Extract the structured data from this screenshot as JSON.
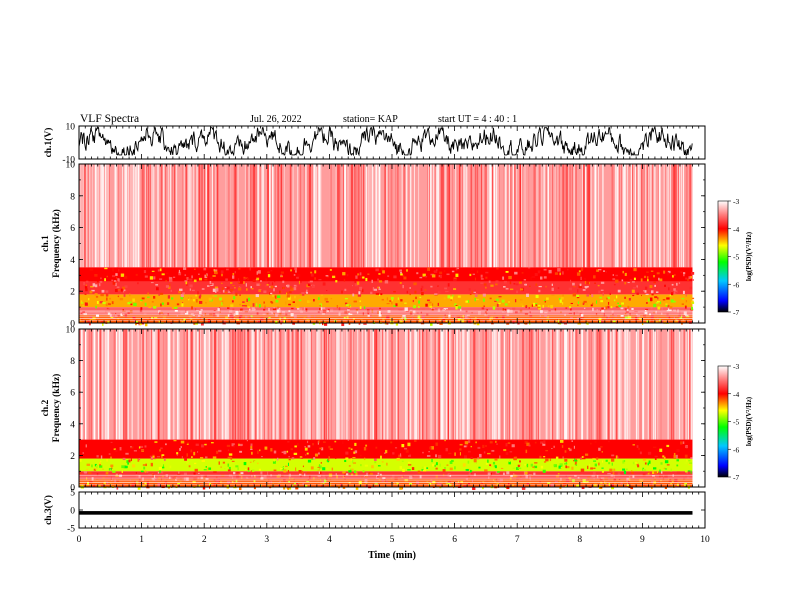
{
  "header": {
    "title": "VLF Spectra",
    "date": "Jul. 26, 2022",
    "station": "station= KAP",
    "start_ut": "start UT = 4 : 40 : 1"
  },
  "colors": {
    "spectrogram_low": "#0000ff",
    "spectrogram_mid": "#00ff00",
    "spectrogram_high": "#ff0000",
    "background": "#ffffff",
    "trace": "#000000"
  },
  "chart_data": [
    {
      "type": "line",
      "id": "ch1-waveform",
      "ylabel": "ch.1(V)",
      "ylim": [
        -10,
        10
      ],
      "ytick_labels": [
        "10",
        "-10"
      ],
      "xlim": [
        0,
        10
      ],
      "x_range_covered": [
        0,
        9.8
      ],
      "series": [
        {
          "description_values": "noisy waveform, amplitude approx -7 to 9 V"
        }
      ]
    },
    {
      "type": "heatmap",
      "id": "ch1-spectrogram",
      "ylabel_line1": "ch.1",
      "ylabel_line2": "Frequency (kHz)",
      "ylim": [
        0,
        10
      ],
      "ytick_labels": [
        "0",
        "2",
        "4",
        "6",
        "8",
        "10"
      ],
      "xlim": [
        0,
        10
      ],
      "x_range_covered": [
        0,
        9.8
      ],
      "bands_khz": [
        {
          "from": 0.0,
          "to": 0.5,
          "level": -4.2
        },
        {
          "from": 0.5,
          "to": 1.0,
          "level": -3.6
        },
        {
          "from": 1.0,
          "to": 1.8,
          "level": -4.4
        },
        {
          "from": 1.8,
          "to": 2.6,
          "level": -3.8
        },
        {
          "from": 2.6,
          "to": 3.5,
          "level": -4.0
        },
        {
          "from": 3.5,
          "to": 10.0,
          "level": -3.0
        }
      ],
      "colorbar": {
        "label": "log(PSD)(V²/Hz)",
        "range": [
          -7,
          -3
        ],
        "tick_labels": [
          "-3",
          "-4",
          "-5",
          "-6",
          "-7"
        ]
      }
    },
    {
      "type": "heatmap",
      "id": "ch2-spectrogram",
      "ylabel_line1": "ch.2",
      "ylabel_line2": "Frequency (kHz)",
      "ylim": [
        0,
        10
      ],
      "ytick_labels": [
        "0",
        "2",
        "4",
        "6",
        "8",
        "10"
      ],
      "xlim": [
        0,
        10
      ],
      "x_range_covered": [
        0,
        9.8
      ],
      "bands_khz": [
        {
          "from": 0.0,
          "to": 0.5,
          "level": -4.2
        },
        {
          "from": 0.5,
          "to": 1.0,
          "level": -3.8
        },
        {
          "from": 1.0,
          "to": 1.8,
          "level": -4.7
        },
        {
          "from": 1.8,
          "to": 3.0,
          "level": -4.0
        },
        {
          "from": 3.0,
          "to": 10.0,
          "level": -3.0
        }
      ],
      "colorbar": {
        "label": "log(PSD)(V²/Hz)",
        "range": [
          -7,
          -3
        ],
        "tick_labels": [
          "-3",
          "-4",
          "-5",
          "-6",
          "-7"
        ]
      }
    },
    {
      "type": "line",
      "id": "ch3-waveform",
      "ylabel": "ch.3(V)",
      "ylim": [
        -5,
        5
      ],
      "ytick_labels": [
        "5",
        "0",
        "-5"
      ],
      "xlim": [
        0,
        10
      ],
      "x_range_covered": [
        0,
        9.8
      ],
      "xlabel": "Time (min)",
      "xtick_labels": [
        "0",
        "1",
        "2",
        "3",
        "4",
        "5",
        "6",
        "7",
        "8",
        "9",
        "10"
      ],
      "series": [
        {
          "description_values": "near-constant dense trace around -0.8 V"
        }
      ]
    }
  ]
}
